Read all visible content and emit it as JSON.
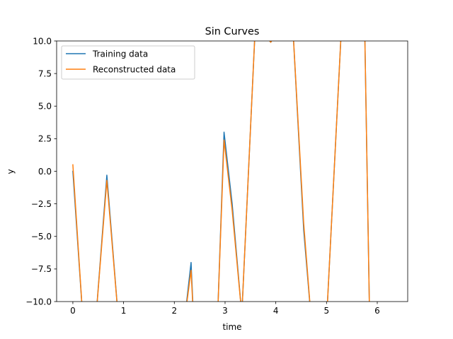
{
  "chart_data": {
    "type": "line",
    "title": "Sin Curves",
    "xlabel": "time",
    "ylabel": "y",
    "xlim": [
      -0.32,
      6.6
    ],
    "ylim": [
      -10,
      10
    ],
    "xticks": [
      0,
      1,
      2,
      3,
      4,
      5,
      6
    ],
    "yticks": [
      -10.0,
      -7.5,
      -5.0,
      -2.5,
      0.0,
      2.5,
      5.0,
      7.5,
      10.0
    ],
    "yticklabels": [
      "−10.0",
      "−7.5",
      "−5.0",
      "−2.5",
      "0.0",
      "2.5",
      "5.0",
      "7.5",
      "10.0"
    ],
    "legend": {
      "placement": "upper-left"
    },
    "grid": false,
    "series": [
      {
        "name": "Training data",
        "color": "#1f77b4",
        "x": [
          0.0,
          0.2,
          0.45,
          0.67,
          0.9,
          2.2,
          2.33,
          2.38,
          2.85,
          2.98,
          3.14,
          3.33,
          3.6,
          3.9,
          4.15,
          4.33,
          4.55,
          4.7,
          5.0,
          5.3,
          5.75,
          5.85
        ],
        "y": [
          0.0,
          -11.5,
          -11.5,
          -0.3,
          -11.5,
          -11.5,
          -7.0,
          -11.5,
          -11.5,
          3.0,
          -2.5,
          -11.0,
          11.5,
          9.9,
          11.5,
          11.5,
          -4.5,
          -11.5,
          -11.5,
          11.5,
          11.5,
          -11.5
        ]
      },
      {
        "name": "Reconstructed data",
        "color": "#ff7f0e",
        "x": [
          0.0,
          0.2,
          0.45,
          0.67,
          0.9,
          2.2,
          2.33,
          2.38,
          2.85,
          2.98,
          3.14,
          3.33,
          3.6,
          3.9,
          4.15,
          4.33,
          4.55,
          4.7,
          5.0,
          5.3,
          5.75,
          5.85
        ],
        "y": [
          0.5,
          -11.5,
          -11.5,
          -0.7,
          -11.5,
          -11.5,
          -7.6,
          -11.5,
          -11.5,
          2.4,
          -3.0,
          -11.0,
          11.5,
          9.9,
          11.5,
          11.5,
          -4.0,
          -11.5,
          -11.5,
          11.5,
          11.5,
          -11.5
        ]
      }
    ]
  }
}
